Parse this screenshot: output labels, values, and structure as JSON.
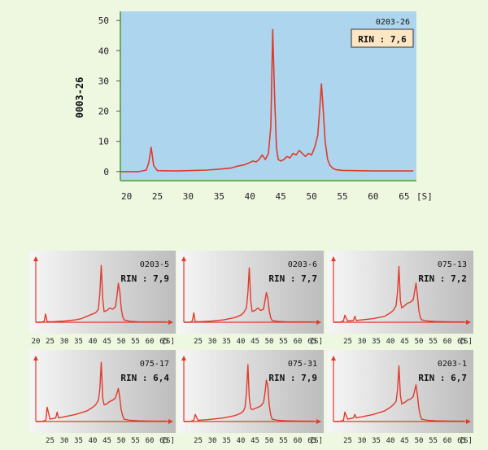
{
  "colors": {
    "page_bg": "#eef7e0",
    "main_plot_bg": "#add5ee",
    "trace": "#e23a2a",
    "rin_box_bg": "#fde6c4",
    "mini_bg_light": "#f6f6f6",
    "mini_bg_dark": "#bdbdbd",
    "axis_arrow": "#e23a2a"
  },
  "chart_data": [
    {
      "type": "line",
      "id": "main",
      "sample_id": "0203-26",
      "rin_label": "RIN : 7,6",
      "ylabel": "0003-26",
      "x_unit_label": "[S]",
      "xlim": [
        19,
        67
      ],
      "ylim": [
        -3,
        53
      ],
      "x_ticks": [
        20,
        25,
        30,
        35,
        40,
        45,
        50,
        55,
        60,
        65
      ],
      "y_ticks": [
        0,
        10,
        20,
        30,
        40,
        50
      ],
      "series": [
        {
          "name": "electropherogram",
          "x": [
            19,
            22,
            23.2,
            23.6,
            24,
            24.4,
            25,
            28,
            30,
            33,
            35,
            37,
            38,
            39,
            40,
            40.5,
            41,
            41.5,
            42,
            42.5,
            43,
            43.4,
            43.7,
            44,
            44.3,
            44.6,
            45,
            45.5,
            46,
            46.5,
            47,
            47.5,
            48,
            48.5,
            49,
            49.5,
            50,
            50.5,
            51,
            51.3,
            51.6,
            51.9,
            52.2,
            52.6,
            53,
            53.5,
            54,
            55,
            57,
            60,
            63,
            66.5
          ],
          "y": [
            0,
            0,
            0.5,
            3,
            8,
            2,
            0.3,
            0.2,
            0.3,
            0.5,
            0.8,
            1.2,
            1.8,
            2.2,
            3,
            3.5,
            3.2,
            4,
            5.5,
            4,
            6,
            15,
            47,
            25,
            8,
            4,
            3.5,
            4,
            5,
            4.5,
            6,
            5.5,
            7,
            6,
            5,
            6,
            5.5,
            8,
            12,
            20,
            29,
            20,
            10,
            4,
            2,
            1,
            0.6,
            0.4,
            0.3,
            0.2,
            0.2,
            0.2
          ]
        }
      ]
    },
    {
      "type": "line",
      "id": "m1",
      "sample_id": "0203-5",
      "rin_label": "RIN : 7,9",
      "x_unit_label": "[S]",
      "xlim": [
        20,
        68
      ],
      "x_ticks": [
        20,
        25,
        30,
        35,
        40,
        45,
        50,
        55,
        60,
        65
      ],
      "y_max": 55,
      "series": [
        {
          "name": "trace",
          "x": [
            20,
            22,
            23,
            23.4,
            24,
            26,
            30,
            34,
            36,
            38,
            40,
            41,
            42,
            42.5,
            43,
            43.5,
            44,
            45,
            46,
            47,
            48,
            48.5,
            49,
            49.5,
            50,
            50.5,
            51,
            53,
            56,
            60,
            66
          ],
          "y": [
            0,
            0,
            1,
            7,
            0.5,
            0.5,
            1,
            2,
            3,
            5,
            7,
            8,
            11,
            25,
            48,
            20,
            9,
            10,
            12,
            11,
            13,
            22,
            33,
            26,
            12,
            5,
            2,
            0.8,
            0.4,
            0.3,
            0.3
          ]
        }
      ]
    },
    {
      "type": "line",
      "id": "m2",
      "sample_id": "0203-6",
      "rin_label": "RIN : 7,7",
      "x_unit_label": "[S]",
      "xlim": [
        20,
        68
      ],
      "x_ticks": [
        25,
        30,
        35,
        40,
        45,
        50,
        55,
        60,
        65
      ],
      "y_max": 55,
      "series": [
        {
          "name": "trace",
          "x": [
            20,
            22,
            23,
            23.5,
            24,
            26,
            30,
            34,
            38,
            40,
            41,
            42,
            42.5,
            43,
            43.5,
            44,
            45,
            46,
            47,
            48,
            48.5,
            49,
            49.5,
            50,
            50.5,
            51,
            53,
            56,
            60,
            66
          ],
          "y": [
            0,
            0,
            1,
            8,
            0.5,
            0.5,
            1,
            2,
            4,
            6,
            8,
            12,
            25,
            46,
            18,
            9,
            10,
            12,
            10,
            11,
            18,
            25,
            20,
            10,
            4,
            1.5,
            0.7,
            0.4,
            0.3,
            0.3
          ]
        }
      ]
    },
    {
      "type": "line",
      "id": "m3",
      "sample_id": "075-13",
      "rin_label": "RIN : 7,2",
      "x_unit_label": "[S]",
      "xlim": [
        20,
        68
      ],
      "x_ticks": [
        25,
        30,
        35,
        40,
        45,
        50,
        55,
        60,
        65
      ],
      "y_max": 55,
      "series": [
        {
          "name": "trace",
          "x": [
            20,
            22,
            23.5,
            24,
            25,
            27,
            27.5,
            28,
            30,
            34,
            38,
            40,
            41,
            42,
            42.5,
            43,
            43.5,
            44,
            45,
            46,
            47,
            48,
            48.5,
            49,
            49.5,
            50,
            50.5,
            51,
            53,
            56,
            60,
            66
          ],
          "y": [
            0,
            0,
            1,
            6,
            1,
            1.5,
            5,
            1.5,
            2,
            3,
            5,
            8,
            10,
            14,
            26,
            47,
            18,
            12,
            14,
            16,
            17,
            19,
            26,
            33,
            22,
            10,
            4,
            2,
            1,
            0.6,
            0.4,
            0.3
          ]
        }
      ]
    },
    {
      "type": "line",
      "id": "m4",
      "sample_id": "075-17",
      "rin_label": "RIN : 6,4",
      "x_unit_label": "[S]",
      "xlim": [
        20,
        68
      ],
      "x_ticks": [
        25,
        30,
        35,
        40,
        45,
        50,
        55,
        60,
        65
      ],
      "y_max": 55,
      "series": [
        {
          "name": "trace",
          "x": [
            20,
            22,
            23.5,
            24,
            25,
            27,
            27.5,
            28,
            30,
            34,
            38,
            40,
            41,
            42,
            42.5,
            43,
            43.5,
            44,
            45,
            46,
            47,
            48,
            48.5,
            49,
            49.5,
            50,
            50.5,
            51,
            53,
            56,
            60,
            66
          ],
          "y": [
            0,
            0,
            1,
            12,
            2,
            3,
            8,
            3,
            4,
            6,
            9,
            12,
            14,
            18,
            28,
            50,
            20,
            14,
            15,
            17,
            18,
            20,
            24,
            28,
            20,
            10,
            5,
            2,
            1,
            0.6,
            0.4,
            0.3
          ]
        }
      ]
    },
    {
      "type": "line",
      "id": "m5",
      "sample_id": "075-31",
      "rin_label": "RIN : 7,9",
      "x_unit_label": "[S]",
      "xlim": [
        20,
        68
      ],
      "x_ticks": [
        25,
        30,
        35,
        40,
        45,
        50,
        55,
        60,
        65
      ],
      "y_max": 55,
      "series": [
        {
          "name": "trace",
          "x": [
            20,
            22,
            23.5,
            24,
            25,
            28,
            30,
            34,
            38,
            40,
            41,
            41.5,
            42,
            42.5,
            43,
            43.5,
            44,
            45,
            46,
            47,
            48,
            48.5,
            49,
            49.5,
            50,
            50.5,
            51,
            53,
            56,
            60,
            66
          ],
          "y": [
            0,
            0,
            1,
            6,
            1,
            1.5,
            2,
            3,
            5,
            7,
            9,
            12,
            24,
            48,
            20,
            11,
            10,
            11,
            12,
            13,
            16,
            24,
            35,
            30,
            14,
            6,
            2,
            1,
            0.6,
            0.4,
            0.3
          ]
        }
      ]
    },
    {
      "type": "line",
      "id": "m6",
      "sample_id": "0203-1",
      "rin_label": "RIN : 6,7",
      "x_unit_label": "[S]",
      "xlim": [
        20,
        68
      ],
      "x_ticks": [
        25,
        30,
        35,
        40,
        45,
        50,
        55,
        60,
        65
      ],
      "y_max": 55,
      "series": [
        {
          "name": "trace",
          "x": [
            20,
            22,
            23.5,
            24,
            25,
            27,
            27.5,
            28,
            30,
            34,
            38,
            40,
            41,
            42,
            42.5,
            43,
            43.5,
            44,
            45,
            46,
            47,
            48,
            48.5,
            49,
            49.5,
            50,
            50.5,
            51,
            53,
            56,
            60,
            66
          ],
          "y": [
            0,
            0,
            1,
            8,
            2,
            3,
            6,
            3,
            4,
            6,
            9,
            12,
            14,
            17,
            27,
            47,
            22,
            15,
            16,
            18,
            19,
            21,
            26,
            31,
            22,
            11,
            5,
            2,
            1,
            0.6,
            0.4,
            0.3
          ]
        }
      ]
    }
  ]
}
